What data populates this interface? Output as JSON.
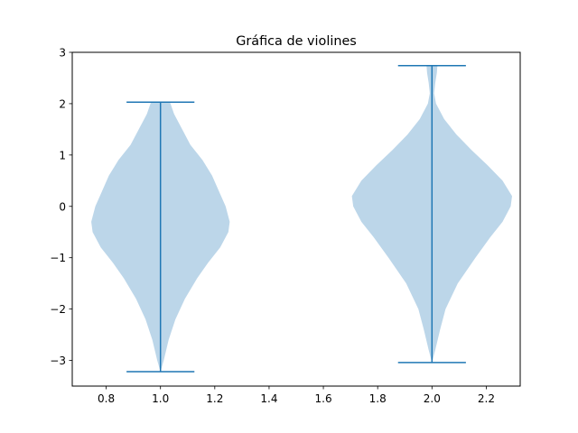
{
  "chart_data": {
    "type": "violin",
    "title": "Gráfica de violines",
    "xlabel": "",
    "ylabel": "",
    "xlim": [
      0.675,
      2.325
    ],
    "ylim": [
      -3.5,
      3.0
    ],
    "x_ticks": [
      {
        "value": 0.8,
        "label": "0.8"
      },
      {
        "value": 1.0,
        "label": "1.0"
      },
      {
        "value": 1.2,
        "label": "1.2"
      },
      {
        "value": 1.4,
        "label": "1.4"
      },
      {
        "value": 1.6,
        "label": "1.6"
      },
      {
        "value": 1.8,
        "label": "1.8"
      },
      {
        "value": 2.0,
        "label": "2.0"
      },
      {
        "value": 2.2,
        "label": "2.2"
      }
    ],
    "y_ticks": [
      {
        "value": -3,
        "label": "−3"
      },
      {
        "value": -2,
        "label": "−2"
      },
      {
        "value": -1,
        "label": "−1"
      },
      {
        "value": 0,
        "label": "0"
      },
      {
        "value": 1,
        "label": "1"
      },
      {
        "value": 2,
        "label": "2"
      },
      {
        "value": 3,
        "label": "3"
      }
    ],
    "grid": false,
    "colors": {
      "body": "#bcd6e9",
      "lines": "#1f77b4"
    },
    "violins": [
      {
        "position": 1.0,
        "min": -3.22,
        "max": 2.03,
        "profile": [
          [
            -3.22,
            0.0
          ],
          [
            -3.0,
            0.012
          ],
          [
            -2.6,
            0.03
          ],
          [
            -2.2,
            0.055
          ],
          [
            -1.8,
            0.09
          ],
          [
            -1.4,
            0.135
          ],
          [
            -1.1,
            0.175
          ],
          [
            -0.8,
            0.22
          ],
          [
            -0.5,
            0.25
          ],
          [
            -0.3,
            0.255
          ],
          [
            0.0,
            0.24
          ],
          [
            0.3,
            0.215
          ],
          [
            0.6,
            0.19
          ],
          [
            0.9,
            0.155
          ],
          [
            1.2,
            0.11
          ],
          [
            1.5,
            0.08
          ],
          [
            1.8,
            0.05
          ],
          [
            2.03,
            0.035
          ]
        ]
      },
      {
        "position": 2.0,
        "min": -3.04,
        "max": 2.74,
        "profile": [
          [
            -3.04,
            0.0
          ],
          [
            -2.8,
            0.012
          ],
          [
            -2.4,
            0.03
          ],
          [
            -2.0,
            0.05
          ],
          [
            -1.5,
            0.095
          ],
          [
            -1.0,
            0.16
          ],
          [
            -0.6,
            0.215
          ],
          [
            -0.3,
            0.26
          ],
          [
            0.0,
            0.29
          ],
          [
            0.2,
            0.295
          ],
          [
            0.5,
            0.26
          ],
          [
            0.8,
            0.205
          ],
          [
            1.1,
            0.145
          ],
          [
            1.4,
            0.09
          ],
          [
            1.7,
            0.045
          ],
          [
            2.0,
            0.015
          ],
          [
            2.2,
            0.008
          ],
          [
            2.4,
            0.012
          ],
          [
            2.6,
            0.018
          ],
          [
            2.74,
            0.02
          ]
        ]
      }
    ]
  }
}
